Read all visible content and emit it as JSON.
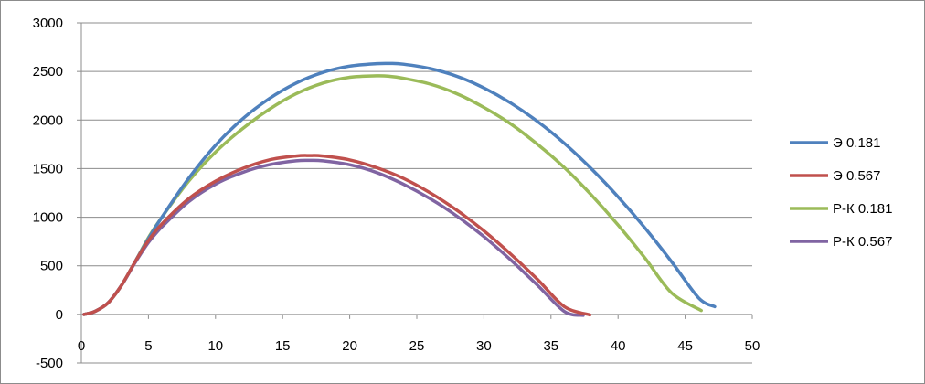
{
  "chart_data": {
    "type": "line",
    "title": "",
    "xlabel": "",
    "ylabel": "",
    "xlim": [
      0,
      50
    ],
    "ylim": [
      -500,
      3000
    ],
    "x_ticks": [
      0,
      5,
      10,
      15,
      20,
      25,
      30,
      35,
      40,
      45,
      50
    ],
    "y_ticks": [
      -500,
      0,
      500,
      1000,
      1500,
      2000,
      2500,
      3000
    ],
    "grid": "horizontal",
    "legend_position": "right",
    "series": [
      {
        "name": "Э 0.181",
        "color": "#4f81bd",
        "x": [
          0.2,
          1,
          2,
          3,
          4,
          5,
          6,
          8,
          10,
          12,
          14,
          16,
          18,
          20,
          22,
          23,
          24,
          26,
          28,
          30,
          32,
          34,
          36,
          38,
          40,
          42,
          44,
          46,
          47.2
        ],
        "y": [
          0,
          30,
          120,
          300,
          540,
          780,
          1000,
          1400,
          1740,
          2010,
          2220,
          2380,
          2490,
          2555,
          2580,
          2582,
          2575,
          2530,
          2450,
          2330,
          2175,
          1985,
          1760,
          1500,
          1210,
          890,
          540,
          170,
          80
        ]
      },
      {
        "name": "Э 0.567",
        "color": "#c0504d",
        "x": [
          0.2,
          1,
          2,
          3,
          4,
          5,
          6,
          8,
          10,
          12,
          14,
          16,
          17,
          18,
          20,
          22,
          24,
          26,
          28,
          30,
          32,
          34,
          36,
          37.9
        ],
        "y": [
          0,
          30,
          120,
          300,
          540,
          760,
          930,
          1190,
          1370,
          1500,
          1590,
          1630,
          1635,
          1630,
          1590,
          1510,
          1400,
          1250,
          1070,
          860,
          620,
          360,
          80,
          -5
        ]
      },
      {
        "name": "Р-К 0.181",
        "color": "#9bbb59",
        "x": [
          0.2,
          1,
          2,
          3,
          4,
          5,
          6,
          8,
          10,
          12,
          14,
          16,
          18,
          20,
          22,
          23,
          24,
          26,
          28,
          30,
          32,
          34,
          36,
          38,
          40,
          42,
          44,
          46.2
        ],
        "y": [
          0,
          30,
          120,
          300,
          540,
          790,
          1000,
          1370,
          1670,
          1910,
          2110,
          2270,
          2380,
          2440,
          2455,
          2450,
          2430,
          2370,
          2270,
          2130,
          1960,
          1750,
          1510,
          1230,
          920,
          580,
          220,
          40
        ]
      },
      {
        "name": "Р-К 0.567",
        "color": "#8064a2",
        "x": [
          0.2,
          1,
          2,
          3,
          4,
          5,
          6,
          8,
          10,
          12,
          14,
          16,
          17,
          18,
          20,
          22,
          24,
          26,
          28,
          30,
          32,
          34,
          36,
          37.4
        ],
        "y": [
          0,
          30,
          120,
          300,
          530,
          740,
          900,
          1160,
          1340,
          1460,
          1540,
          1580,
          1585,
          1580,
          1540,
          1460,
          1340,
          1190,
          1010,
          800,
          560,
          300,
          30,
          -10
        ]
      }
    ]
  }
}
